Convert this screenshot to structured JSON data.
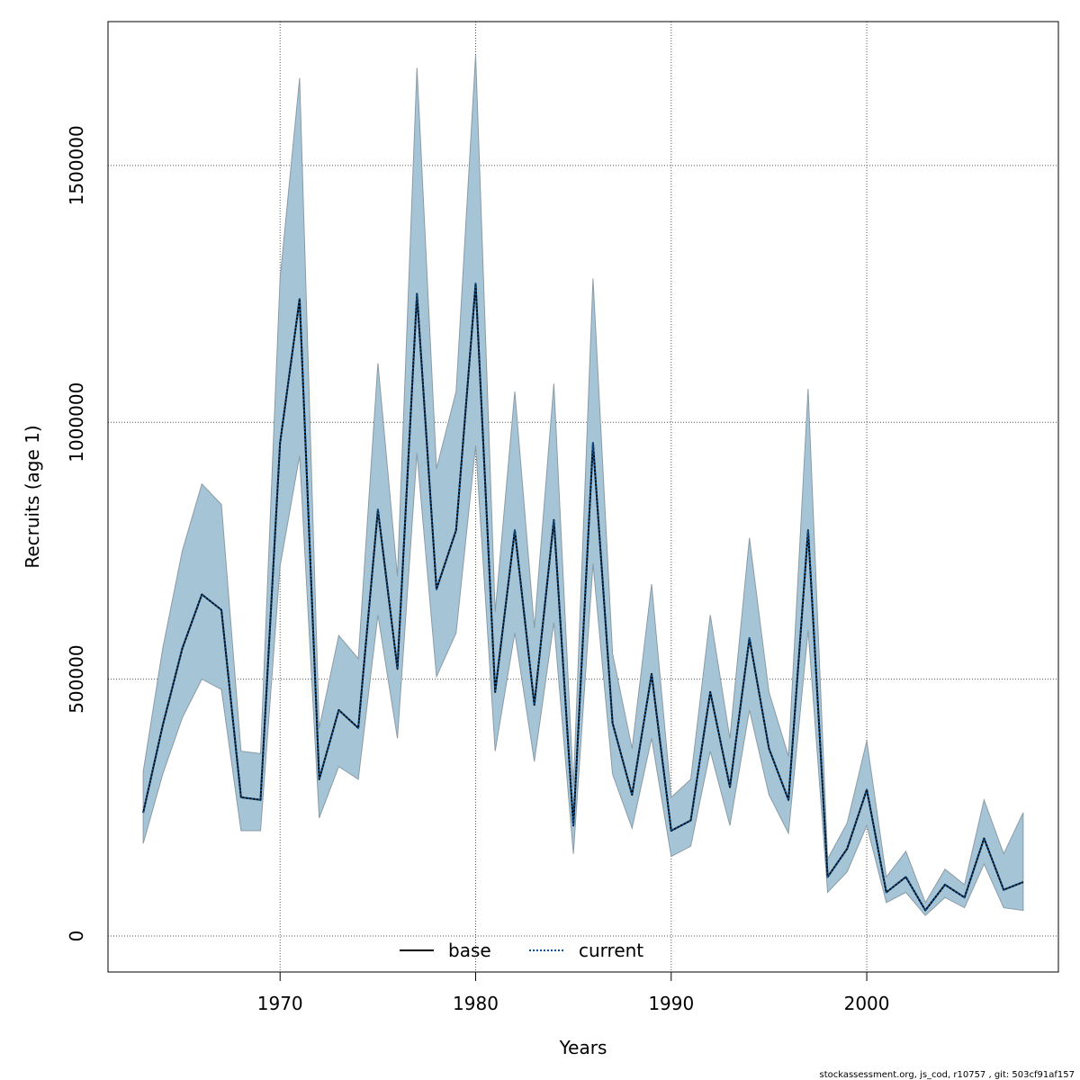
{
  "chart_data": {
    "type": "line",
    "xlabel": "Years",
    "ylabel": "Recruits (age 1)",
    "xlim": [
      1961.2,
      2009.8
    ],
    "ylim": [
      -70000,
      1780000
    ],
    "x_ticks": [
      1970,
      1980,
      1990,
      2000
    ],
    "y_ticks": [
      0,
      500000,
      1000000,
      1500000
    ],
    "x_tick_labels": [
      "1970",
      "1980",
      "1990",
      "2000"
    ],
    "y_tick_labels": [
      "0",
      "500000",
      "1000000",
      "1500000"
    ],
    "grid": true,
    "legend_position": "bottom-center",
    "x": [
      1963,
      1964,
      1965,
      1966,
      1967,
      1968,
      1969,
      1970,
      1971,
      1972,
      1973,
      1974,
      1975,
      1976,
      1977,
      1978,
      1979,
      1980,
      1981,
      1982,
      1983,
      1984,
      1985,
      1986,
      1987,
      1988,
      1989,
      1990,
      1991,
      1992,
      1993,
      1994,
      1995,
      1996,
      1997,
      1998,
      1999,
      2000,
      2001,
      2002,
      2003,
      2004,
      2005,
      2006,
      2007,
      2008
    ],
    "series": [
      {
        "name": "base",
        "color": "#000000",
        "line_style": "solid",
        "values": [
          240000,
          410000,
          560000,
          665000,
          635000,
          270000,
          265000,
          960000,
          1240000,
          305000,
          440000,
          405000,
          830000,
          520000,
          1250000,
          675000,
          790000,
          1270000,
          475000,
          790000,
          450000,
          810000,
          215000,
          960000,
          415000,
          275000,
          510000,
          205000,
          225000,
          475000,
          290000,
          580000,
          365000,
          265000,
          790000,
          115000,
          170000,
          285000,
          85000,
          115000,
          50000,
          100000,
          75000,
          190000,
          90000,
          105000
        ]
      },
      {
        "name": "current",
        "color": "#0b5394",
        "line_style": "dotted",
        "values": [
          240000,
          410000,
          560000,
          665000,
          635000,
          270000,
          265000,
          960000,
          1240000,
          305000,
          440000,
          405000,
          830000,
          520000,
          1250000,
          675000,
          790000,
          1270000,
          475000,
          790000,
          450000,
          810000,
          215000,
          960000,
          415000,
          275000,
          510000,
          205000,
          225000,
          475000,
          290000,
          580000,
          365000,
          265000,
          790000,
          115000,
          170000,
          285000,
          85000,
          115000,
          50000,
          100000,
          75000,
          190000,
          90000,
          105000
        ]
      }
    ],
    "interval": {
      "color": "#a5c5d7",
      "lower": [
        180000,
        315000,
        425000,
        500000,
        480000,
        205000,
        205000,
        720000,
        935000,
        230000,
        330000,
        305000,
        625000,
        385000,
        940000,
        505000,
        590000,
        955000,
        360000,
        590000,
        340000,
        610000,
        160000,
        725000,
        315000,
        210000,
        385000,
        155000,
        175000,
        360000,
        215000,
        440000,
        275000,
        200000,
        595000,
        85000,
        125000,
        215000,
        65000,
        85000,
        40000,
        75000,
        55000,
        140000,
        55000,
        50000
      ],
      "upper": [
        320000,
        560000,
        750000,
        880000,
        840000,
        360000,
        355000,
        1280000,
        1670000,
        405000,
        585000,
        540000,
        1115000,
        700000,
        1690000,
        910000,
        1060000,
        1715000,
        630000,
        1060000,
        600000,
        1075000,
        290000,
        1280000,
        550000,
        365000,
        685000,
        270000,
        305000,
        625000,
        385000,
        775000,
        475000,
        350000,
        1065000,
        150000,
        220000,
        380000,
        115000,
        165000,
        65000,
        130000,
        100000,
        265000,
        160000,
        240000
      ]
    }
  },
  "legend": {
    "items": [
      {
        "label": "base",
        "color": "#000000",
        "style": "solid"
      },
      {
        "label": "current",
        "color": "#0b5394",
        "style": "dotted"
      }
    ]
  },
  "footer": {
    "text": "stockassessment.org, js_cod, r10757 , git: 503cf91af157"
  }
}
